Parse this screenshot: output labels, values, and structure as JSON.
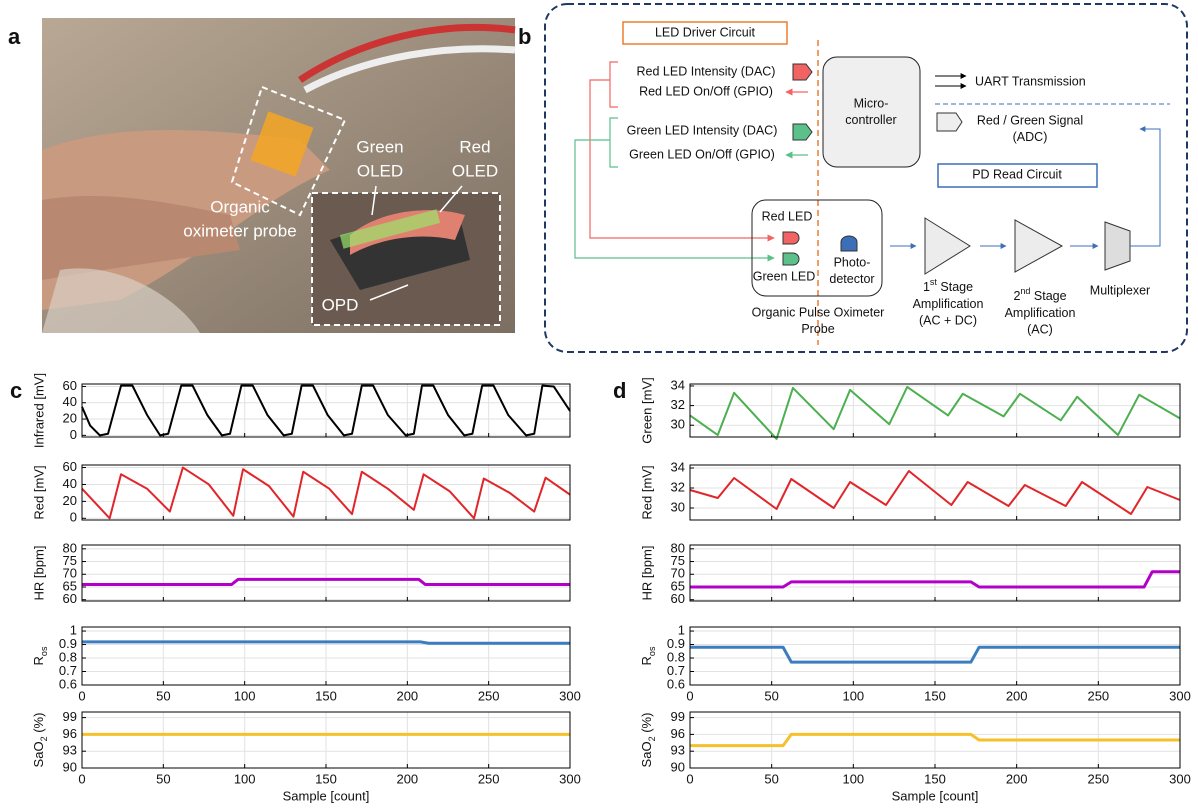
{
  "panel_labels": [
    "a",
    "b",
    "c",
    "d"
  ],
  "photo": {
    "labels": [
      [
        "Green",
        "OLED"
      ],
      [
        "Red",
        "OLED"
      ],
      [
        "Organic",
        "oximeter probe"
      ],
      [
        "OPD"
      ]
    ]
  },
  "diagram": {
    "labels": [
      [
        "LED Driver Circuit"
      ],
      [
        "Red LED Intensity (DAC)"
      ],
      [
        "Red LED On/Off (GPIO)"
      ],
      [
        "Green LED Intensity (DAC)"
      ],
      [
        "Green LED On/Off (GPIO)"
      ],
      [
        "Micro-",
        "controller"
      ],
      [
        "UART Transmission"
      ],
      [
        "Red / Green Signal",
        "(ADC)"
      ],
      [
        "PD Read Circuit"
      ],
      [
        "Red LED"
      ],
      [
        "Green LED"
      ],
      [
        "Photo-",
        "detector"
      ],
      [
        "Organic Pulse Oximeter",
        "Probe"
      ],
      [
        [
          {
            "text": "1"
          },
          {
            "text": "st",
            "script": "super"
          },
          {
            "text": " Stage"
          }
        ],
        "Amplification",
        "(AC + DC)"
      ],
      [
        [
          {
            "text": "2"
          },
          {
            "text": "nd",
            "script": "super"
          },
          {
            "text": " Stage"
          }
        ],
        "Amplification",
        "(AC)"
      ],
      [
        "Multiplexer"
      ]
    ]
  },
  "chart_data": [
    {
      "type": "line",
      "ylabel": "Infrared [mV]",
      "xlim": [
        0,
        300
      ],
      "xticks": [
        0,
        50,
        100,
        150,
        200,
        250,
        300
      ],
      "xtick_labels": false,
      "ylim": [
        -2,
        63
      ],
      "yticks": [
        0,
        20,
        40,
        60
      ],
      "grid": true,
      "x": [
        0,
        5,
        11,
        16,
        24,
        31,
        40,
        48,
        53,
        61,
        68,
        77,
        86,
        91,
        98,
        105,
        114,
        124,
        129,
        135,
        142,
        151,
        161,
        166,
        172,
        179,
        188,
        199,
        204,
        209,
        216,
        225,
        235,
        240,
        246,
        253,
        262,
        273,
        278,
        283,
        290,
        300
      ],
      "series": [
        {
          "color": "#000000",
          "linewidth": 2,
          "values": [
            35,
            12,
            0,
            2,
            61,
            61,
            25,
            0,
            2,
            61,
            61,
            25,
            0,
            2,
            61,
            61,
            25,
            0,
            2,
            61,
            61,
            25,
            0,
            2,
            61,
            61,
            25,
            0,
            2,
            61,
            61,
            25,
            0,
            2,
            61,
            61,
            25,
            0,
            2,
            61,
            60,
            30
          ]
        }
      ]
    },
    {
      "type": "line",
      "ylabel": "Red [mV]",
      "xlim": [
        0,
        300
      ],
      "xticks": [
        0,
        50,
        100,
        150,
        200,
        250,
        300
      ],
      "xtick_labels": false,
      "ylim": [
        -2,
        63
      ],
      "yticks": [
        0,
        20,
        40,
        60
      ],
      "grid": true,
      "x": [
        0,
        17,
        24,
        40,
        54,
        62,
        78,
        93,
        99,
        115,
        130,
        136,
        152,
        166,
        172,
        188,
        204,
        210,
        226,
        241,
        247,
        263,
        278,
        285,
        300
      ],
      "series": [
        {
          "color": "#e0262a",
          "linewidth": 2,
          "values": [
            35,
            0,
            52,
            35,
            8,
            60,
            40,
            3,
            58,
            38,
            2,
            55,
            35,
            5,
            55,
            35,
            10,
            52,
            32,
            0,
            47,
            30,
            8,
            48,
            28
          ]
        }
      ]
    },
    {
      "type": "line",
      "ylabel": "HR [bpm]",
      "xlim": [
        0,
        300
      ],
      "xticks": [
        0,
        50,
        100,
        150,
        200,
        250,
        300
      ],
      "xtick_labels": false,
      "ylim": [
        59.5,
        81.5
      ],
      "yticks": [
        60,
        65,
        70,
        75,
        80
      ],
      "grid": true,
      "x": [
        0,
        92,
        96,
        207,
        211,
        300
      ],
      "series": [
        {
          "color": "#b300c8",
          "linewidth": 3,
          "values": [
            66,
            66,
            68,
            68,
            66,
            66
          ]
        }
      ]
    },
    {
      "type": "line",
      "ylabel": [
        {
          "text": "R"
        },
        {
          "text": "os",
          "script": "sub"
        }
      ],
      "xlim": [
        0,
        300
      ],
      "xticks": [
        0,
        50,
        100,
        150,
        200,
        250,
        300
      ],
      "xtick_labels": true,
      "ylim": [
        0.6,
        1.03
      ],
      "yticks": [
        0.6,
        0.7,
        0.8,
        0.9,
        1
      ],
      "grid": true,
      "x": [
        0,
        208,
        213,
        300
      ],
      "series": [
        {
          "color": "#3b7dbf",
          "linewidth": 3,
          "values": [
            0.92,
            0.92,
            0.91,
            0.91
          ]
        }
      ]
    },
    {
      "type": "line",
      "ylabel": [
        {
          "text": "SaO"
        },
        {
          "text": "2",
          "script": "sub"
        },
        {
          "text": " (%)"
        }
      ],
      "xlabel": "Sample [count]",
      "xlim": [
        0,
        300
      ],
      "xticks": [
        0,
        50,
        100,
        150,
        200,
        250,
        300
      ],
      "xtick_labels": true,
      "ylim": [
        90,
        100
      ],
      "yticks": [
        90,
        93,
        96,
        99
      ],
      "grid": true,
      "x": [
        0,
        300
      ],
      "series": [
        {
          "color": "#f5c02a",
          "linewidth": 3,
          "values": [
            96,
            96
          ]
        }
      ]
    },
    {
      "type": "line",
      "ylabel": "Green [mV]",
      "xlim": [
        0,
        300
      ],
      "xticks": [
        0,
        50,
        100,
        150,
        200,
        250,
        300
      ],
      "xtick_labels": false,
      "ylim": [
        28.8,
        34.2
      ],
      "yticks": [
        30,
        32,
        34
      ],
      "grid": true,
      "x": [
        0,
        17,
        27,
        53,
        63,
        88,
        98,
        122,
        133,
        158,
        167,
        192,
        202,
        227,
        237,
        262,
        275,
        300
      ],
      "series": [
        {
          "color": "#4caf50",
          "linewidth": 2,
          "values": [
            31,
            29,
            33.3,
            28.6,
            33.8,
            29.6,
            33.6,
            30.1,
            33.9,
            31.0,
            33.2,
            30.9,
            33.2,
            30.5,
            32.9,
            29.0,
            33.1,
            30.7
          ]
        }
      ]
    },
    {
      "type": "line",
      "ylabel": "Red [mV]",
      "xlim": [
        0,
        300
      ],
      "xticks": [
        0,
        50,
        100,
        150,
        200,
        250,
        300
      ],
      "xtick_labels": false,
      "ylim": [
        28.8,
        34.3
      ],
      "yticks": [
        30,
        32,
        34
      ],
      "grid": true,
      "x": [
        0,
        17,
        27,
        53,
        62,
        88,
        98,
        120,
        134,
        160,
        170,
        195,
        205,
        230,
        240,
        270,
        280,
        300
      ],
      "series": [
        {
          "color": "#e0262a",
          "linewidth": 2,
          "values": [
            31.8,
            31.0,
            33.0,
            29.9,
            32.9,
            30.0,
            32.6,
            30.3,
            33.7,
            30.3,
            32.6,
            30.2,
            32.3,
            30.2,
            32.6,
            29.4,
            32.1,
            30.8
          ]
        }
      ]
    },
    {
      "type": "line",
      "ylabel": "HR [bpm]",
      "xlim": [
        0,
        300
      ],
      "xticks": [
        0,
        50,
        100,
        150,
        200,
        250,
        300
      ],
      "xtick_labels": false,
      "ylim": [
        59.5,
        81.5
      ],
      "yticks": [
        60,
        65,
        70,
        75,
        80
      ],
      "grid": true,
      "x": [
        0,
        57,
        62,
        172,
        177,
        278,
        283,
        300
      ],
      "series": [
        {
          "color": "#b300c8",
          "linewidth": 3,
          "values": [
            65,
            65,
            67,
            67,
            65,
            65,
            71,
            71
          ]
        }
      ]
    },
    {
      "type": "line",
      "ylabel": [
        {
          "text": "R"
        },
        {
          "text": "os",
          "script": "sub"
        }
      ],
      "xlim": [
        0,
        300
      ],
      "xticks": [
        0,
        50,
        100,
        150,
        200,
        250,
        300
      ],
      "xtick_labels": true,
      "ylim": [
        0.6,
        1.03
      ],
      "yticks": [
        0.6,
        0.7,
        0.8,
        0.9,
        1
      ],
      "grid": true,
      "x": [
        0,
        57,
        62,
        172,
        177,
        300
      ],
      "series": [
        {
          "color": "#3b7dbf",
          "linewidth": 3,
          "values": [
            0.88,
            0.88,
            0.77,
            0.77,
            0.88,
            0.88
          ]
        }
      ]
    },
    {
      "type": "line",
      "ylabel": [
        {
          "text": "SaO"
        },
        {
          "text": "2",
          "script": "sub"
        },
        {
          "text": " (%)"
        }
      ],
      "xlabel": "Sample [count]",
      "xlim": [
        0,
        300
      ],
      "xticks": [
        0,
        50,
        100,
        150,
        200,
        250,
        300
      ],
      "xtick_labels": true,
      "ylim": [
        90,
        100
      ],
      "yticks": [
        90,
        93,
        96,
        99
      ],
      "grid": true,
      "x": [
        0,
        57,
        62,
        172,
        177,
        300
      ],
      "series": [
        {
          "color": "#f5c02a",
          "linewidth": 3,
          "values": [
            94,
            94,
            96,
            96,
            95,
            95
          ]
        }
      ]
    }
  ]
}
